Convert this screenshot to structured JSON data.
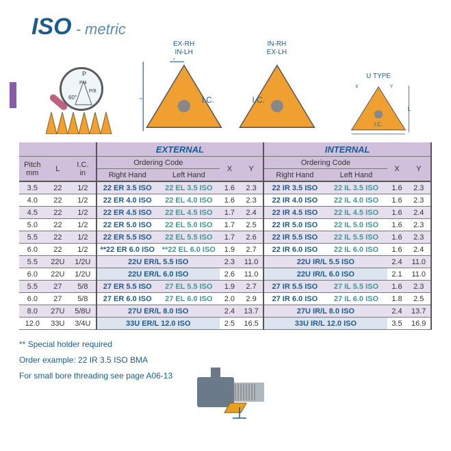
{
  "title": {
    "main": "ISO",
    "sub": "- metric"
  },
  "diagram_labels": {
    "exrh": "EX-RH\nIN-LH",
    "inrh": "IN-RH\nEX-LH",
    "utype": "U  TYPE",
    "ic": "I.C.",
    "x": "X",
    "y": "Y",
    "l": "L",
    "p": "P",
    "angle": "60°",
    "p4": "P/4",
    "p8": "P/8"
  },
  "colors": {
    "header_bg": "#d0c0dc",
    "band_bg": "#e6e0ee",
    "u_bg": "#dce4f0",
    "primary": "#1a5c8f",
    "teal": "#3a9a9a",
    "accent_bar": "#8a5ca8",
    "insert_fill": "#f0a030",
    "border": "#555"
  },
  "table": {
    "group_ext": "EXTERNAL",
    "group_int": "INTERNAL",
    "oc": "Ordering Code",
    "rh": "Right Hand",
    "lh": "Left Hand",
    "cols": {
      "pitch": "Pitch\nmm",
      "l": "L",
      "ic": "I.C.\nin",
      "x": "X",
      "y": "Y"
    },
    "rows": [
      {
        "pitch": "3.5",
        "l": "22",
        "ic": "1/2",
        "erh": "22 ER 3.5 ISO",
        "elh": "22 EL 3.5 ISO",
        "ex": "1.6",
        "ey": "2.3",
        "irh": "22 IR 3.5 ISO",
        "ilh": "22 IL 3.5 ISO",
        "ix": "1.6",
        "iy": "2.3",
        "band": true
      },
      {
        "pitch": "4.0",
        "l": "22",
        "ic": "1/2",
        "erh": "22 ER 4.0 ISO",
        "elh": "22 EL 4.0 ISO",
        "ex": "1.6",
        "ey": "2.3",
        "irh": "22 IR 4.0 ISO",
        "ilh": "22 IL 4.0 ISO",
        "ix": "1.6",
        "iy": "2.3"
      },
      {
        "pitch": "4.5",
        "l": "22",
        "ic": "1/2",
        "erh": "22 ER 4.5 ISO",
        "elh": "22 EL 4.5 ISO",
        "ex": "1.7",
        "ey": "2.4",
        "irh": "22 IR 4.5 ISO",
        "ilh": "22 IL 4.5 ISO",
        "ix": "1.6",
        "iy": "2.4",
        "band": true
      },
      {
        "pitch": "5.0",
        "l": "22",
        "ic": "1/2",
        "erh": "22 ER 5.0 ISO",
        "elh": "22 EL 5.0 ISO",
        "ex": "1.7",
        "ey": "2.5",
        "irh": "22 IR 5.0 ISO",
        "ilh": "22 IL 5.0 ISO",
        "ix": "1.6",
        "iy": "2.3"
      },
      {
        "pitch": "5.5",
        "l": "22",
        "ic": "1/2",
        "erh": "22 ER 5.5 ISO",
        "elh": "22 EL 5.5 ISO",
        "ex": "1.7",
        "ey": "2.6",
        "irh": "22 IR 5.5 ISO",
        "ilh": "22 IL 5.5 ISO",
        "ix": "1.6",
        "iy": "2.3",
        "band": true
      },
      {
        "pitch": "6.0",
        "l": "22",
        "ic": "1/2",
        "erh": "**22 ER 6.0 ISO",
        "elh": "**22 EL 6.0 ISO",
        "ex": "1.9",
        "ey": "2.7",
        "irh": "22 IR 6.0 ISO",
        "ilh": "22 IL 6.0 ISO",
        "ix": "1.6",
        "iy": "2.4"
      },
      {
        "pitch": "5.5",
        "l": "22U",
        "ic": "1/2U",
        "u_ext": "22U ER/L 5.5 ISO",
        "ex": "2.3",
        "ey": "11.0",
        "u_int": "22U IR/L 5.5 ISO",
        "ix": "2.4",
        "iy": "11.0",
        "u": true,
        "band": true
      },
      {
        "pitch": "6.0",
        "l": "22U",
        "ic": "1/2U",
        "u_ext": "22U ER/L 6.0 ISO",
        "ex": "2.6",
        "ey": "11.0",
        "u_int": "22U IR/L 6.0 ISO",
        "ix": "2.1",
        "iy": "11.0",
        "u": true
      },
      {
        "pitch": "5.5",
        "l": "27",
        "ic": "5/8",
        "erh": "27 ER 5.5 ISO",
        "elh": "27 EL 5.5 ISO",
        "ex": "1.9",
        "ey": "2.7",
        "irh": "27 IR 5.5 ISO",
        "ilh": "27 IL 5.5 ISO",
        "ix": "1.6",
        "iy": "2.3",
        "band": true
      },
      {
        "pitch": "6.0",
        "l": "27",
        "ic": "5/8",
        "erh": "27 ER 6.0 ISO",
        "elh": "27 EL 6.0 ISO",
        "ex": "2.0",
        "ey": "2.9",
        "irh": "27 IR 6.0 ISO",
        "ilh": "27 IL 6.0 ISO",
        "ix": "1.8",
        "iy": "2.5"
      },
      {
        "pitch": "8.0",
        "l": "27U",
        "ic": "5/8U",
        "u_ext": "27U ER/L  8.0 ISO",
        "ex": "2.4",
        "ey": "13.7",
        "u_int": "27U IR/L  8.0 ISO",
        "ix": "2.4",
        "iy": "13.7",
        "u": true,
        "band": true
      },
      {
        "pitch": "12.0",
        "l": "33U",
        "ic": "3/4U",
        "u_ext": "33U ER/L 12.0 ISO",
        "ex": "2.5",
        "ey": "16.5",
        "u_int": "33U IR/L 12.0 ISO",
        "ix": "3.5",
        "iy": "16.9",
        "u": true
      }
    ]
  },
  "notes": {
    "n1": "** Special holder required",
    "n2": "Order example: 22 IR 3.5 ISO BMA",
    "n3": "For small bore threading see page A06-13"
  }
}
